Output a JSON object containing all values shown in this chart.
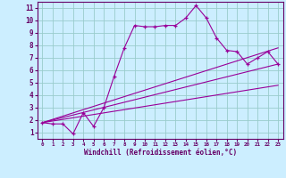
{
  "xlabel": "Windchill (Refroidissement éolien,°C)",
  "bg_color": "#cceeff",
  "line_color": "#990099",
  "grid_color": "#99cccc",
  "axis_color": "#660066",
  "x_ticks": [
    0,
    1,
    2,
    3,
    4,
    5,
    6,
    7,
    8,
    9,
    10,
    11,
    12,
    13,
    14,
    15,
    16,
    17,
    18,
    19,
    20,
    21,
    22,
    23
  ],
  "y_ticks": [
    1,
    2,
    3,
    4,
    5,
    6,
    7,
    8,
    9,
    10,
    11
  ],
  "xlim": [
    -0.5,
    23.5
  ],
  "ylim": [
    0.5,
    11.5
  ],
  "series1_x": [
    0,
    1,
    2,
    3,
    4,
    5,
    6,
    7,
    8,
    9,
    10,
    11,
    12,
    13,
    14,
    15,
    16,
    17,
    18,
    19,
    20,
    21,
    22,
    23
  ],
  "series1_y": [
    1.8,
    1.7,
    1.7,
    0.9,
    2.6,
    1.5,
    3.0,
    5.5,
    7.8,
    9.6,
    9.5,
    9.5,
    9.6,
    9.6,
    10.2,
    11.2,
    10.2,
    8.6,
    7.6,
    7.5,
    6.5,
    7.0,
    7.5,
    6.5
  ],
  "series2_x": [
    0,
    23
  ],
  "series2_y": [
    1.8,
    7.8
  ],
  "series3_x": [
    0,
    23
  ],
  "series3_y": [
    1.8,
    6.5
  ],
  "series4_x": [
    0,
    23
  ],
  "series4_y": [
    1.8,
    4.8
  ],
  "tick_fontsize": 5.5,
  "xlabel_fontsize": 5.5
}
